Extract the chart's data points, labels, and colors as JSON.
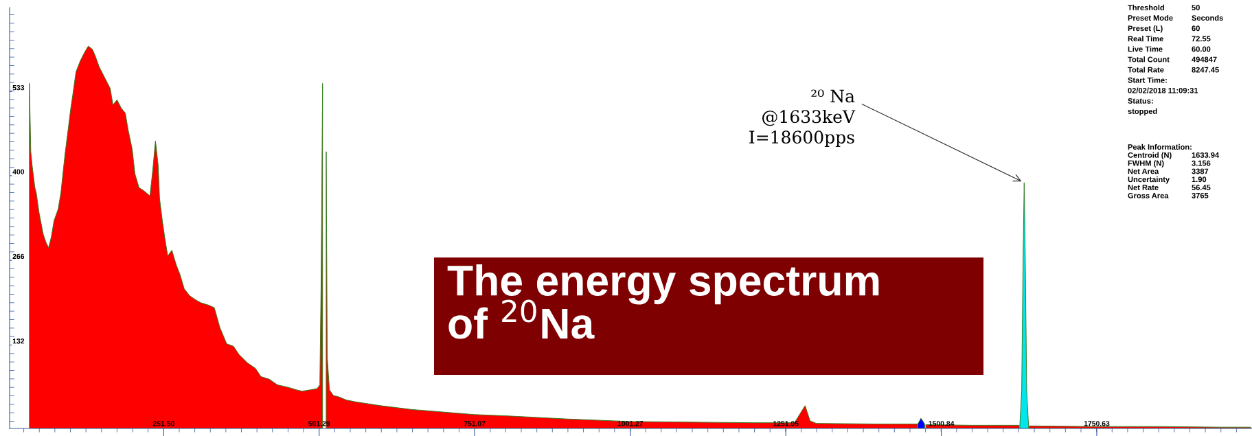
{
  "chart_data": {
    "type": "area",
    "title": "The energy spectrum of $^{20}$Na",
    "xlim": [
      4,
      2000
    ],
    "ylim": [
      0,
      666
    ],
    "xticks": [
      {
        "value": 251.5,
        "label": "251.50"
      },
      501.29,
      751.07,
      1001.27,
      1251.05,
      1500.84,
      1750.63
    ],
    "yticks": [
      132,
      266,
      400,
      533
    ],
    "series": [
      {
        "color": "#ff0000",
        "x": [
          35.8,
          38.0,
          40.2,
          44.6,
          46.8,
          51.2,
          57.8,
          62.2,
          66.6,
          71.0,
          75.4,
          82.0,
          86.4,
          93.0,
          97.4,
          101.8,
          106.2,
          110.6,
          117.2,
          123.8,
          130.4,
          137.0,
          141.4,
          148.0,
          156.8,
          165.6,
          170.0,
          176.6,
          183.2,
          189.9,
          194.3,
          200.9,
          205.3,
          211.9,
          218.5,
          229.5,
          233.9,
          238.3,
          242.7,
          244.9,
          249.3,
          253.7,
          258.1,
          264.7,
          271.3,
          277.9,
          284.5,
          293.3,
          302.1,
          310.9,
          324.1,
          332.9,
          341.7,
          352.7,
          363.7,
          372.5,
          385.8,
          399.0,
          407.8,
          421.0,
          434.2,
          451.8,
          465.0,
          473.8,
          487.0,
          498.0,
          502.4,
          504.6,
          506.8,
          508.2,
          511.2,
          512.6,
          514.3,
          517.8,
          524.4,
          532.8,
          545,
          560,
          600,
          650,
          700,
          750,
          800,
          900,
          1000,
          1100,
          1200,
          1265,
          1275,
          1282,
          1290,
          1300,
          1400,
          1462,
          1468,
          1476,
          1550,
          1626,
          1634,
          1642,
          1750,
          1850,
          1950,
          1998
        ],
        "values": [
          546,
          438,
          416,
          381,
          373,
          342,
          308,
          295,
          286,
          303,
          329,
          347,
          373,
          434,
          468,
          503,
          533,
          564,
          581,
          594,
          605,
          600,
          590,
          572,
          555,
          538,
          512,
          520,
          507,
          499,
          473,
          442,
          403,
          381,
          377,
          368,
          408,
          455,
          416,
          364,
          329,
          299,
          273,
          282,
          260,
          243,
          221,
          210,
          204,
          199,
          195,
          191,
          160,
          134,
          130,
          117,
          104,
          95,
          82,
          78,
          69,
          65,
          61,
          59,
          61,
          63,
          69,
          243,
          546,
          null,
          null,
          438,
          113,
          61,
          52,
          50,
          45,
          42,
          36,
          30,
          26,
          22,
          20,
          15,
          11,
          10,
          9,
          9,
          25,
          36,
          12,
          8,
          7,
          7,
          null,
          6,
          5,
          5,
          null,
          4,
          3,
          3,
          2,
          2
        ]
      },
      {
        "color": "#0000ff",
        "x": [
          1463,
          1466,
          1468,
          1471,
          1474
        ],
        "values": [
          7,
          12,
          16,
          12,
          7
        ]
      },
      {
        "color": "#00e5ee",
        "x": [
          1627,
          1630,
          1632,
          1634,
          1636,
          1638,
          1641
        ],
        "values": [
          5,
          60,
          250,
          389,
          250,
          60,
          5
        ]
      }
    ],
    "annotations": [
      {
        "text": "²⁰ Na\n@1633keV\nI=18600pps",
        "x": 1634,
        "y": 389
      },
      "Threshold  50",
      "Preset Mode  Seconds",
      "Preset (L)  60",
      "Real Time  72.55",
      "Live Time  60.00",
      "Total Count  494847",
      "Total Rate  8247.45",
      "Start Time:",
      "02/02/2018 11:09:31",
      "Status:",
      "stopped",
      "Peak Information:",
      "Centroid (N)  1633.94",
      "FWHM (N)  3.156",
      "Net Area  3387",
      "Uncertainty  1.90",
      "Net Rate  56.45",
      "Gross Area  3765"
    ]
  }
}
